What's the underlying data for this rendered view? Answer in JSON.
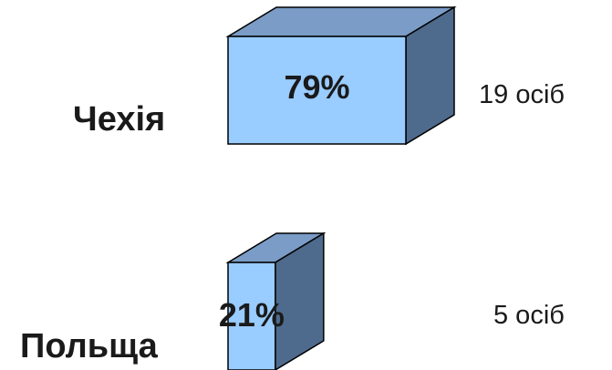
{
  "chart_data": {
    "type": "bar",
    "orientation": "horizontal",
    "style": "3d-box",
    "categories": [
      "Чехія",
      "Польща"
    ],
    "values": [
      79,
      21
    ],
    "value_unit": "%",
    "value_labels": [
      "79%",
      "21%"
    ],
    "count_labels": [
      "19 осіб",
      "5 осіб"
    ],
    "counts": [
      19,
      5
    ],
    "grid": false,
    "legend": "none",
    "colors": {
      "front": "#99CCFF",
      "top": "#7A9CC6",
      "side": "#4E6A8C",
      "stroke": "#000000"
    }
  }
}
